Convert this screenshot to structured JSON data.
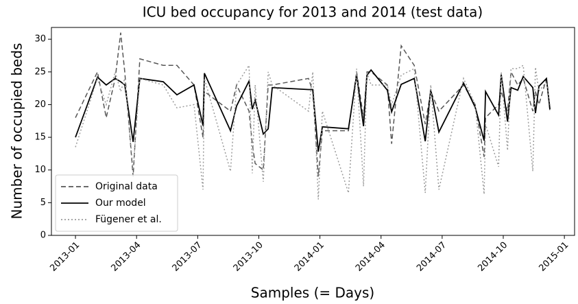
{
  "chart_data": {
    "type": "line",
    "title": "ICU bed occupancy for 2013 and 2014 (test data)",
    "x_label": "Samples (= Days)",
    "y_label": "Number of occupied beds",
    "x": [
      0,
      1.08,
      1.51,
      1.95,
      2.22,
      2.42,
      2.83,
      3.16,
      4.31,
      4.98,
      5.82,
      6.26,
      6.33,
      7.61,
      7.91,
      8.52,
      8.68,
      8.82,
      9.22,
      9.46,
      9.66,
      11.44,
      11.65,
      11.92,
      12.12,
      13.4,
      13.8,
      14.14,
      14.31,
      14.51,
      15.31,
      15.52,
      15.99,
      16.63,
      17.17,
      17.44,
      17.84,
      19.05,
      19.62,
      20.06,
      20.13,
      20.77,
      20.9,
      21.21,
      21.38,
      21.71,
      21.98,
      22.45,
      22.58,
      22.75,
      23.12,
      23.29
    ],
    "series": [
      {
        "name": "Original data",
        "color": "#555555",
        "linestyle": "dashed",
        "values": [
          18,
          25,
          18,
          24,
          31,
          25,
          9,
          27,
          26,
          26,
          23,
          15,
          22,
          19,
          23,
          19,
          14,
          11,
          10,
          23,
          23,
          24,
          22,
          9,
          16,
          16,
          25,
          18,
          25,
          25,
          23,
          14,
          29,
          26,
          17,
          22,
          19,
          23,
          20,
          12,
          18,
          20,
          22,
          19,
          25,
          23,
          24,
          19,
          22,
          20,
          24,
          19
        ]
      },
      {
        "name": "Our model",
        "color": "#000000",
        "linestyle": "solid",
        "values": [
          15,
          24.2,
          23,
          24,
          23.5,
          23,
          14.3,
          24,
          23.5,
          21.5,
          23,
          16.8,
          24.8,
          16,
          19.8,
          23.6,
          19.3,
          20.7,
          15.5,
          16.3,
          22.6,
          22.3,
          22.3,
          12.8,
          16.6,
          16.3,
          24.5,
          16.7,
          24.5,
          25.3,
          22.2,
          18.9,
          23.1,
          24,
          14.4,
          22.3,
          15.8,
          23.3,
          19.6,
          14.5,
          22,
          18.4,
          24.6,
          17.4,
          22.6,
          22.2,
          24.3,
          22.6,
          18.7,
          22.8,
          24,
          19.3
        ]
      },
      {
        "name": "Fügener et al.",
        "color": "#9a9a9a",
        "linestyle": "dotted",
        "values": [
          13.5,
          24,
          20,
          25,
          22,
          24,
          10,
          24,
          23,
          19.5,
          20,
          7,
          24,
          9.8,
          23,
          26,
          9.5,
          23,
          8.2,
          25,
          23,
          19,
          25,
          5.5,
          19,
          6.5,
          25.5,
          7.5,
          25,
          23,
          23,
          20,
          24.5,
          25.5,
          6.5,
          23,
          7,
          24,
          20,
          6.3,
          17,
          10.5,
          25,
          13,
          25.5,
          25.5,
          26,
          9.8,
          25.7,
          22,
          23.5,
          20
        ]
      }
    ],
    "xlim": [
      -1.18,
      24.5
    ],
    "xticks": [
      {
        "value": 0,
        "label": "2013-01"
      },
      {
        "value": 3,
        "label": "2013-04"
      },
      {
        "value": 6,
        "label": "2013-07"
      },
      {
        "value": 9,
        "label": "2013-10"
      },
      {
        "value": 12,
        "label": "2014-01"
      },
      {
        "value": 15,
        "label": "2014-04"
      },
      {
        "value": 18,
        "label": "2014-07"
      },
      {
        "value": 21,
        "label": "2014-10"
      },
      {
        "value": 24,
        "label": "2015-01"
      }
    ],
    "ylim": [
      0,
      31.8
    ],
    "yticks": [
      0,
      5,
      10,
      15,
      20,
      25,
      30
    ],
    "grid": false,
    "legend": "lower left"
  }
}
